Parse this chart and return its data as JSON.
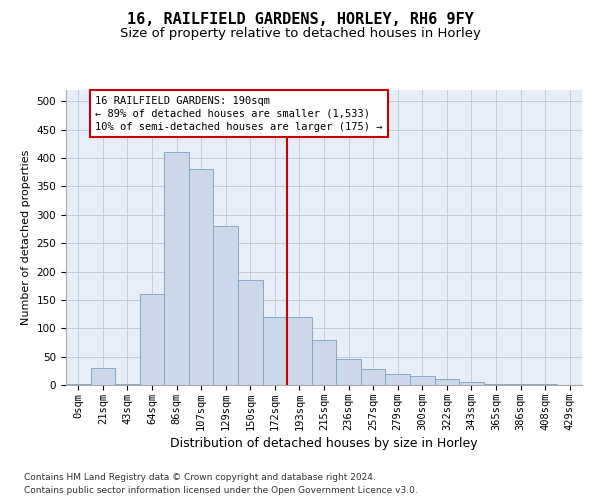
{
  "title1": "16, RAILFIELD GARDENS, HORLEY, RH6 9FY",
  "title2": "Size of property relative to detached houses in Horley",
  "xlabel": "Distribution of detached houses by size in Horley",
  "ylabel": "Number of detached properties",
  "footnote1": "Contains HM Land Registry data © Crown copyright and database right 2024.",
  "footnote2": "Contains public sector information licensed under the Open Government Licence v3.0.",
  "bar_labels": [
    "0sqm",
    "21sqm",
    "43sqm",
    "64sqm",
    "86sqm",
    "107sqm",
    "129sqm",
    "150sqm",
    "172sqm",
    "193sqm",
    "215sqm",
    "236sqm",
    "257sqm",
    "279sqm",
    "300sqm",
    "322sqm",
    "343sqm",
    "365sqm",
    "386sqm",
    "408sqm",
    "429sqm"
  ],
  "bar_heights": [
    2,
    30,
    2,
    160,
    410,
    380,
    280,
    185,
    120,
    120,
    80,
    45,
    28,
    20,
    16,
    10,
    5,
    2,
    2,
    2,
    0
  ],
  "bar_color": "#ccd8ea",
  "bar_edge_color": "#7aa0c0",
  "vline_x_index": 9,
  "vline_color": "#cc0000",
  "annotation_text": "16 RAILFIELD GARDENS: 190sqm\n← 89% of detached houses are smaller (1,533)\n10% of semi-detached houses are larger (175) →",
  "annotation_box_color": "#cc0000",
  "ylim": [
    0,
    520
  ],
  "yticks": [
    0,
    50,
    100,
    150,
    200,
    250,
    300,
    350,
    400,
    450,
    500
  ],
  "grid_color": "#c0ccdd",
  "bg_color": "#e8eef8",
  "title1_fontsize": 11,
  "title2_fontsize": 9.5,
  "xlabel_fontsize": 9,
  "ylabel_fontsize": 8,
  "footnote_fontsize": 6.5,
  "tick_fontsize": 7.5,
  "annot_fontsize": 7.5
}
